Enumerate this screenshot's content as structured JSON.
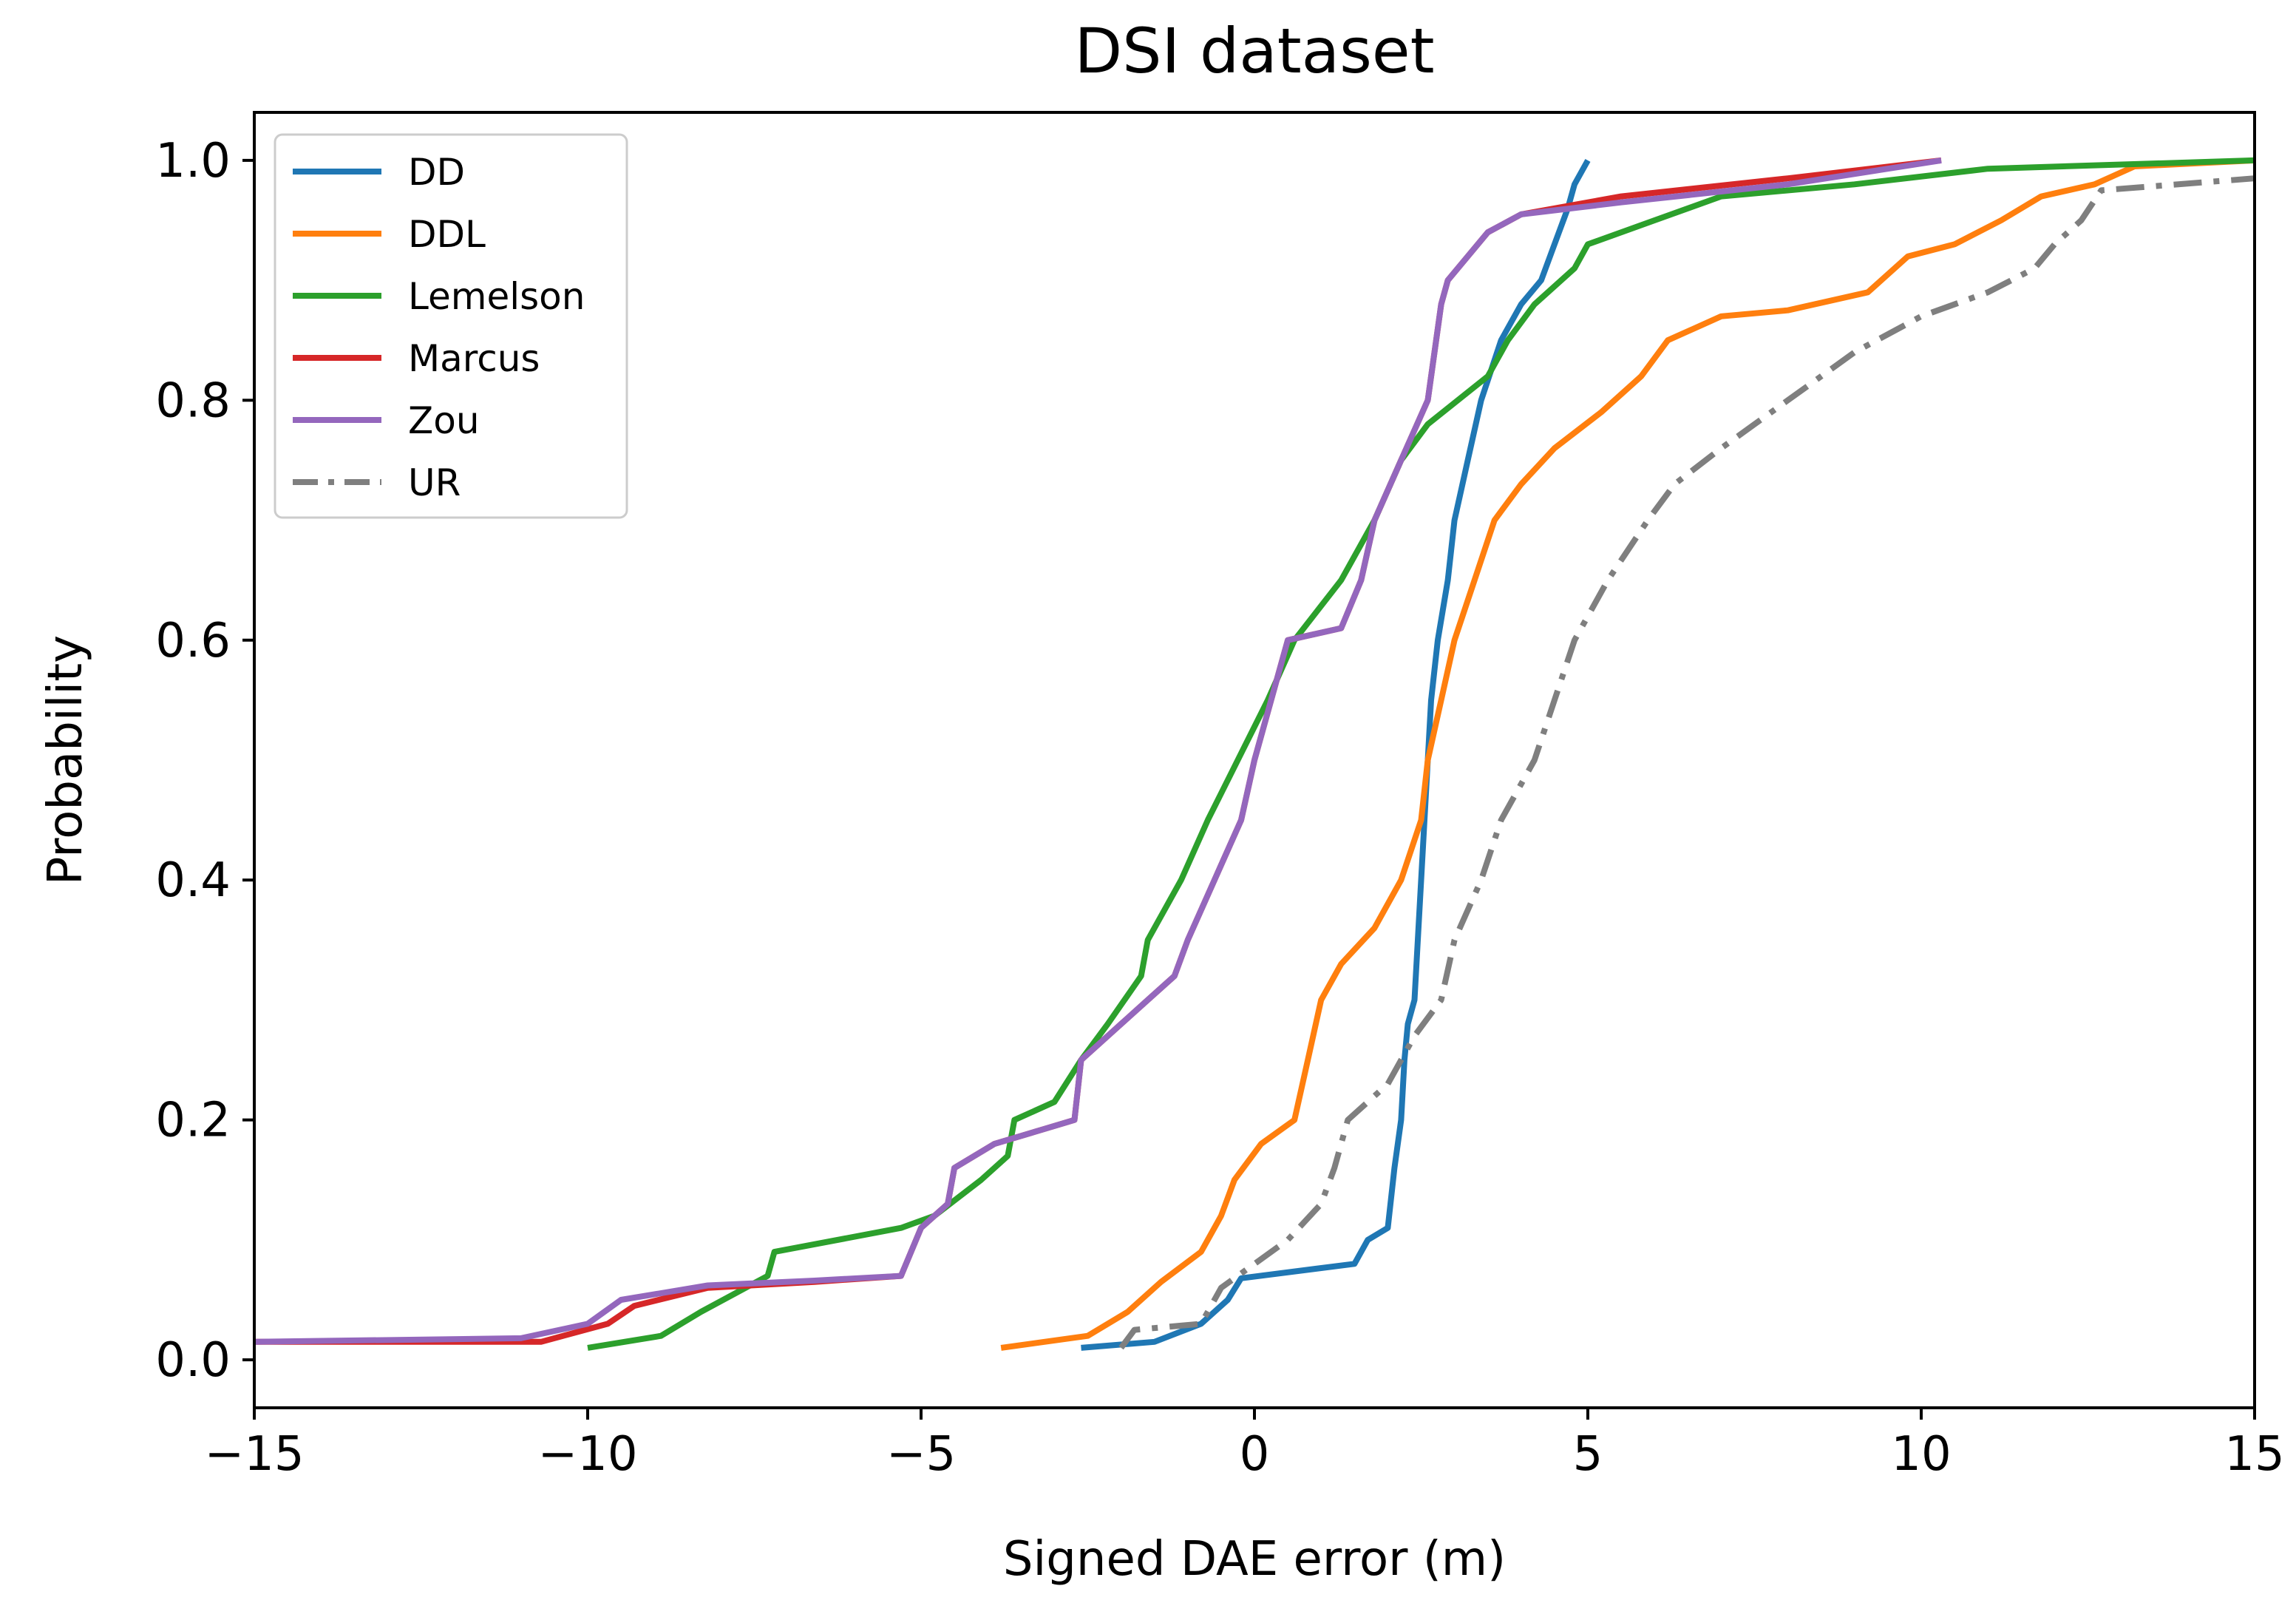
{
  "chart_data": {
    "type": "line",
    "title": "DSI dataset",
    "xlabel": "Signed DAE error (m)",
    "ylabel": "Probability",
    "xlim": [
      -15,
      15
    ],
    "ylim": [
      -0.04,
      1.04
    ],
    "xticks": [
      -15,
      -10,
      -5,
      0,
      5,
      10,
      15
    ],
    "xtick_labels": [
      "−15",
      "−10",
      "−5",
      "0",
      "5",
      "10",
      "15"
    ],
    "yticks": [
      0.0,
      0.2,
      0.4,
      0.6,
      0.8,
      1.0
    ],
    "ytick_labels": [
      "0.0",
      "0.2",
      "0.4",
      "0.6",
      "0.8",
      "1.0"
    ],
    "grid": false,
    "legend_position": "upper-left",
    "series": [
      {
        "name": "DD",
        "color": "#1f77b4",
        "dash": "solid",
        "points": [
          [
            -2.6,
            0.01
          ],
          [
            -1.5,
            0.015
          ],
          [
            -0.8,
            0.03
          ],
          [
            -0.4,
            0.05
          ],
          [
            -0.2,
            0.068
          ],
          [
            1.5,
            0.08
          ],
          [
            1.7,
            0.1
          ],
          [
            2.0,
            0.11
          ],
          [
            2.1,
            0.16
          ],
          [
            2.2,
            0.2
          ],
          [
            2.25,
            0.25
          ],
          [
            2.3,
            0.28
          ],
          [
            2.4,
            0.3
          ],
          [
            2.45,
            0.35
          ],
          [
            2.5,
            0.4
          ],
          [
            2.55,
            0.45
          ],
          [
            2.6,
            0.5
          ],
          [
            2.65,
            0.55
          ],
          [
            2.75,
            0.6
          ],
          [
            2.9,
            0.65
          ],
          [
            3.0,
            0.7
          ],
          [
            3.2,
            0.75
          ],
          [
            3.4,
            0.8
          ],
          [
            3.7,
            0.85
          ],
          [
            4.0,
            0.88
          ],
          [
            4.3,
            0.9
          ],
          [
            4.5,
            0.93
          ],
          [
            4.7,
            0.96
          ],
          [
            4.8,
            0.98
          ],
          [
            5.0,
            1.0
          ]
        ]
      },
      {
        "name": "DDL",
        "color": "#ff7f0e",
        "dash": "solid",
        "points": [
          [
            -3.8,
            0.01
          ],
          [
            -2.5,
            0.02
          ],
          [
            -1.9,
            0.04
          ],
          [
            -1.4,
            0.065
          ],
          [
            -0.8,
            0.09
          ],
          [
            -0.5,
            0.12
          ],
          [
            -0.3,
            0.15
          ],
          [
            0.1,
            0.18
          ],
          [
            0.6,
            0.2
          ],
          [
            0.8,
            0.25
          ],
          [
            1.0,
            0.3
          ],
          [
            1.3,
            0.33
          ],
          [
            1.8,
            0.36
          ],
          [
            2.2,
            0.4
          ],
          [
            2.5,
            0.45
          ],
          [
            2.6,
            0.5
          ],
          [
            2.8,
            0.55
          ],
          [
            3.0,
            0.6
          ],
          [
            3.3,
            0.65
          ],
          [
            3.6,
            0.7
          ],
          [
            4.0,
            0.73
          ],
          [
            4.5,
            0.76
          ],
          [
            5.2,
            0.79
          ],
          [
            5.8,
            0.82
          ],
          [
            6.2,
            0.85
          ],
          [
            7.0,
            0.87
          ],
          [
            8.0,
            0.875
          ],
          [
            9.2,
            0.89
          ],
          [
            9.8,
            0.92
          ],
          [
            10.5,
            0.93
          ],
          [
            11.2,
            0.95
          ],
          [
            11.8,
            0.97
          ],
          [
            12.6,
            0.98
          ],
          [
            13.2,
            0.995
          ],
          [
            15.0,
            1.0
          ]
        ]
      },
      {
        "name": "Lemelson",
        "color": "#2ca02c",
        "dash": "solid",
        "points": [
          [
            -10.0,
            0.01
          ],
          [
            -8.9,
            0.02
          ],
          [
            -8.3,
            0.04
          ],
          [
            -7.3,
            0.07
          ],
          [
            -7.2,
            0.09
          ],
          [
            -5.3,
            0.11
          ],
          [
            -4.8,
            0.12
          ],
          [
            -4.1,
            0.15
          ],
          [
            -3.7,
            0.17
          ],
          [
            -3.6,
            0.2
          ],
          [
            -3.0,
            0.215
          ],
          [
            -2.6,
            0.25
          ],
          [
            -2.2,
            0.28
          ],
          [
            -1.7,
            0.32
          ],
          [
            -1.6,
            0.35
          ],
          [
            -1.1,
            0.4
          ],
          [
            -0.7,
            0.45
          ],
          [
            0.2,
            0.55
          ],
          [
            0.6,
            0.6
          ],
          [
            1.3,
            0.65
          ],
          [
            1.8,
            0.7
          ],
          [
            2.2,
            0.75
          ],
          [
            2.6,
            0.78
          ],
          [
            3.5,
            0.82
          ],
          [
            3.8,
            0.85
          ],
          [
            4.2,
            0.88
          ],
          [
            4.8,
            0.91
          ],
          [
            5.0,
            0.93
          ],
          [
            6.0,
            0.95
          ],
          [
            7.0,
            0.97
          ],
          [
            9.0,
            0.98
          ],
          [
            11.0,
            0.993
          ],
          [
            15.0,
            1.0
          ]
        ]
      },
      {
        "name": "Marcus",
        "color": "#d62728",
        "dash": "solid",
        "points": [
          [
            -15.0,
            0.015
          ],
          [
            -10.7,
            0.015
          ],
          [
            -9.7,
            0.03
          ],
          [
            -9.3,
            0.045
          ],
          [
            -8.2,
            0.06
          ],
          [
            -6.6,
            0.065
          ],
          [
            -5.3,
            0.07
          ],
          [
            -5.0,
            0.11
          ],
          [
            -4.6,
            0.13
          ],
          [
            -4.5,
            0.16
          ],
          [
            -3.9,
            0.18
          ],
          [
            -2.7,
            0.2
          ],
          [
            -2.6,
            0.25
          ],
          [
            -2.0,
            0.28
          ],
          [
            -1.6,
            0.3
          ],
          [
            -1.2,
            0.32
          ],
          [
            -1.0,
            0.35
          ],
          [
            -0.6,
            0.4
          ],
          [
            -0.2,
            0.45
          ],
          [
            0.0,
            0.5
          ],
          [
            0.5,
            0.6
          ],
          [
            1.3,
            0.61
          ],
          [
            1.6,
            0.65
          ],
          [
            1.8,
            0.7
          ],
          [
            2.2,
            0.75
          ],
          [
            2.6,
            0.8
          ],
          [
            2.8,
            0.88
          ],
          [
            2.9,
            0.9
          ],
          [
            3.5,
            0.94
          ],
          [
            4.0,
            0.955
          ],
          [
            5.5,
            0.97
          ],
          [
            8.0,
            0.985
          ],
          [
            10.3,
            1.0
          ]
        ]
      },
      {
        "name": "Zou",
        "color": "#9467bd",
        "dash": "solid",
        "points": [
          [
            -15.0,
            0.015
          ],
          [
            -11.0,
            0.018
          ],
          [
            -10.0,
            0.03
          ],
          [
            -9.5,
            0.05
          ],
          [
            -8.2,
            0.062
          ],
          [
            -6.6,
            0.066
          ],
          [
            -5.3,
            0.07
          ],
          [
            -5.0,
            0.11
          ],
          [
            -4.6,
            0.13
          ],
          [
            -4.5,
            0.16
          ],
          [
            -3.9,
            0.18
          ],
          [
            -2.7,
            0.2
          ],
          [
            -2.6,
            0.25
          ],
          [
            -2.0,
            0.28
          ],
          [
            -1.6,
            0.3
          ],
          [
            -1.2,
            0.32
          ],
          [
            -1.0,
            0.35
          ],
          [
            -0.6,
            0.4
          ],
          [
            -0.2,
            0.45
          ],
          [
            0.0,
            0.5
          ],
          [
            0.5,
            0.6
          ],
          [
            1.3,
            0.61
          ],
          [
            1.6,
            0.65
          ],
          [
            1.8,
            0.7
          ],
          [
            2.2,
            0.75
          ],
          [
            2.6,
            0.8
          ],
          [
            2.8,
            0.88
          ],
          [
            2.9,
            0.9
          ],
          [
            3.5,
            0.94
          ],
          [
            4.0,
            0.955
          ],
          [
            5.5,
            0.965
          ],
          [
            8.0,
            0.98
          ],
          [
            10.3,
            1.0
          ]
        ]
      },
      {
        "name": "UR",
        "color": "#7f7f7f",
        "dash": "dashdot",
        "points": [
          [
            -2.0,
            0.01
          ],
          [
            -1.8,
            0.025
          ],
          [
            -0.8,
            0.03
          ],
          [
            -0.5,
            0.06
          ],
          [
            0.5,
            0.1
          ],
          [
            1.0,
            0.13
          ],
          [
            1.2,
            0.16
          ],
          [
            1.4,
            0.2
          ],
          [
            2.0,
            0.23
          ],
          [
            2.4,
            0.27
          ],
          [
            2.8,
            0.3
          ],
          [
            3.0,
            0.35
          ],
          [
            3.4,
            0.4
          ],
          [
            3.7,
            0.45
          ],
          [
            4.2,
            0.5
          ],
          [
            4.5,
            0.55
          ],
          [
            4.8,
            0.6
          ],
          [
            5.3,
            0.65
          ],
          [
            5.9,
            0.7
          ],
          [
            6.3,
            0.73
          ],
          [
            7.0,
            0.76
          ],
          [
            7.5,
            0.78
          ],
          [
            8.0,
            0.8
          ],
          [
            8.5,
            0.82
          ],
          [
            9.0,
            0.84
          ],
          [
            10.0,
            0.87
          ],
          [
            11.0,
            0.89
          ],
          [
            11.7,
            0.91
          ],
          [
            12.0,
            0.93
          ],
          [
            12.4,
            0.95
          ],
          [
            12.7,
            0.975
          ],
          [
            15.0,
            0.985
          ]
        ]
      }
    ]
  }
}
